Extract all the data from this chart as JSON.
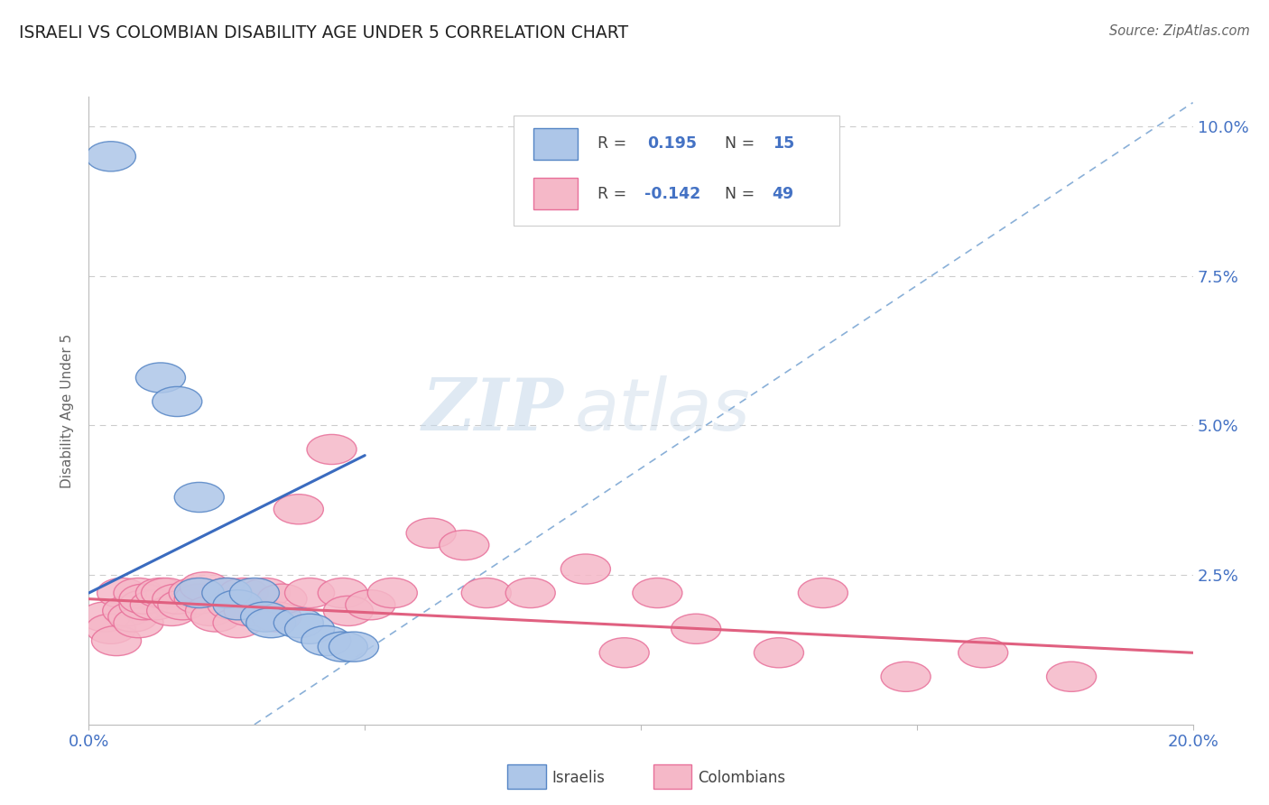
{
  "title": "ISRAELI VS COLOMBIAN DISABILITY AGE UNDER 5 CORRELATION CHART",
  "source": "Source: ZipAtlas.com",
  "ylabel": "Disability Age Under 5",
  "xlim": [
    0.0,
    0.2
  ],
  "ylim": [
    0.0,
    0.105
  ],
  "x_ticks": [
    0.0,
    0.05,
    0.1,
    0.15,
    0.2
  ],
  "x_tick_labels": [
    "0.0%",
    "",
    "",
    "",
    "20.0%"
  ],
  "y_ticks": [
    0.0,
    0.025,
    0.05,
    0.075,
    0.1
  ],
  "y_tick_labels": [
    "",
    "2.5%",
    "5.0%",
    "7.5%",
    "10.0%"
  ],
  "israeli_color": "#adc6e8",
  "colombian_color": "#f5b8c8",
  "israeli_edge_color": "#5585c5",
  "colombian_edge_color": "#e8709a",
  "israeli_line_color": "#3a6bbf",
  "colombian_line_color": "#e06080",
  "diagonal_color": "#8ab0d8",
  "watermark_color": "#d5e4f0",
  "background_color": "#ffffff",
  "grid_color": "#cccccc",
  "tick_color": "#4472c4",
  "israeli_points": [
    [
      0.004,
      0.095
    ],
    [
      0.013,
      0.058
    ],
    [
      0.016,
      0.054
    ],
    [
      0.02,
      0.038
    ],
    [
      0.02,
      0.022
    ],
    [
      0.025,
      0.022
    ],
    [
      0.027,
      0.02
    ],
    [
      0.03,
      0.022
    ],
    [
      0.032,
      0.018
    ],
    [
      0.033,
      0.017
    ],
    [
      0.038,
      0.017
    ],
    [
      0.04,
      0.016
    ],
    [
      0.043,
      0.014
    ],
    [
      0.046,
      0.013
    ],
    [
      0.048,
      0.013
    ]
  ],
  "colombian_points": [
    [
      0.003,
      0.018
    ],
    [
      0.004,
      0.016
    ],
    [
      0.005,
      0.014
    ],
    [
      0.006,
      0.022
    ],
    [
      0.007,
      0.019
    ],
    [
      0.008,
      0.018
    ],
    [
      0.009,
      0.017
    ],
    [
      0.009,
      0.022
    ],
    [
      0.01,
      0.02
    ],
    [
      0.01,
      0.021
    ],
    [
      0.012,
      0.02
    ],
    [
      0.013,
      0.022
    ],
    [
      0.014,
      0.022
    ],
    [
      0.015,
      0.019
    ],
    [
      0.016,
      0.021
    ],
    [
      0.017,
      0.02
    ],
    [
      0.019,
      0.022
    ],
    [
      0.02,
      0.021
    ],
    [
      0.021,
      0.023
    ],
    [
      0.022,
      0.019
    ],
    [
      0.023,
      0.018
    ],
    [
      0.025,
      0.022
    ],
    [
      0.026,
      0.02
    ],
    [
      0.027,
      0.017
    ],
    [
      0.028,
      0.022
    ],
    [
      0.029,
      0.019
    ],
    [
      0.032,
      0.022
    ],
    [
      0.034,
      0.018
    ],
    [
      0.035,
      0.021
    ],
    [
      0.038,
      0.036
    ],
    [
      0.04,
      0.022
    ],
    [
      0.044,
      0.046
    ],
    [
      0.046,
      0.022
    ],
    [
      0.047,
      0.019
    ],
    [
      0.051,
      0.02
    ],
    [
      0.055,
      0.022
    ],
    [
      0.062,
      0.032
    ],
    [
      0.068,
      0.03
    ],
    [
      0.072,
      0.022
    ],
    [
      0.08,
      0.022
    ],
    [
      0.09,
      0.026
    ],
    [
      0.097,
      0.012
    ],
    [
      0.103,
      0.022
    ],
    [
      0.11,
      0.016
    ],
    [
      0.125,
      0.012
    ],
    [
      0.133,
      0.022
    ],
    [
      0.148,
      0.008
    ],
    [
      0.162,
      0.012
    ],
    [
      0.178,
      0.008
    ]
  ],
  "isr_line_x": [
    0.0,
    0.05
  ],
  "isr_line_y": [
    0.022,
    0.045
  ],
  "col_line_x": [
    0.0,
    0.2
  ],
  "col_line_y": [
    0.021,
    0.012
  ]
}
